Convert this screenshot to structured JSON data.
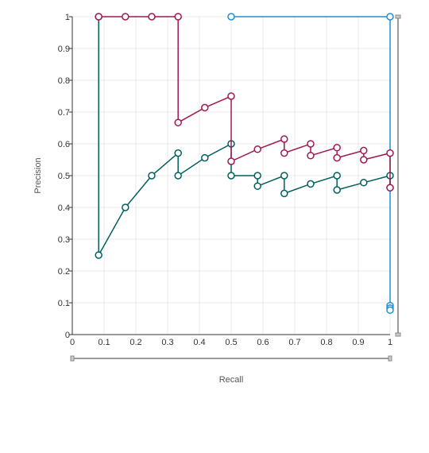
{
  "chart_data": {
    "type": "line",
    "title": "",
    "xlabel": "Recall",
    "ylabel": "Precision",
    "xlim": [
      0,
      1
    ],
    "ylim": [
      0,
      1
    ],
    "x_ticks": [
      "0",
      "0.1",
      "0.2",
      "0.3",
      "0.4",
      "0.5",
      "0.6",
      "0.7",
      "0.8",
      "0.9",
      "1"
    ],
    "y_ticks": [
      "0",
      "0.1",
      "0.2",
      "0.3",
      "0.4",
      "0.5",
      "0.6",
      "0.7",
      "0.8",
      "0.9",
      "1"
    ],
    "grid": true,
    "series": [
      {
        "color": "#1e8fd6",
        "points": [
          [
            0.5,
            1
          ],
          [
            1,
            1
          ],
          [
            1,
            0.091
          ],
          [
            1,
            0.083
          ],
          [
            1,
            0.077
          ]
        ]
      },
      {
        "color": "#005f5f",
        "points": [
          [
            0.083,
            1
          ],
          [
            0.083,
            0.25
          ],
          [
            0.167,
            0.4
          ],
          [
            0.25,
            0.5
          ],
          [
            0.333,
            0.571
          ],
          [
            0.333,
            0.5
          ],
          [
            0.417,
            0.556
          ],
          [
            0.5,
            0.6
          ],
          [
            0.5,
            0.5
          ],
          [
            0.583,
            0.5
          ],
          [
            0.583,
            0.467
          ],
          [
            0.667,
            0.5
          ],
          [
            0.667,
            0.444
          ],
          [
            0.75,
            0.474
          ],
          [
            0.833,
            0.5
          ],
          [
            0.833,
            0.455
          ],
          [
            0.917,
            0.478
          ],
          [
            1,
            0.5
          ],
          [
            1,
            0.462
          ]
        ]
      },
      {
        "color": "#9f1853",
        "points": [
          [
            0.083,
            1
          ],
          [
            0.167,
            1
          ],
          [
            0.25,
            1
          ],
          [
            0.333,
            1
          ],
          [
            0.333,
            0.667
          ],
          [
            0.417,
            0.714
          ],
          [
            0.5,
            0.75
          ],
          [
            0.5,
            0.545
          ],
          [
            0.583,
            0.583
          ],
          [
            0.667,
            0.615
          ],
          [
            0.667,
            0.571
          ],
          [
            0.75,
            0.6
          ],
          [
            0.75,
            0.563
          ],
          [
            0.833,
            0.588
          ],
          [
            0.833,
            0.556
          ],
          [
            0.917,
            0.579
          ],
          [
            0.917,
            0.55
          ],
          [
            1,
            0.571
          ],
          [
            1,
            0.462
          ]
        ]
      }
    ]
  }
}
